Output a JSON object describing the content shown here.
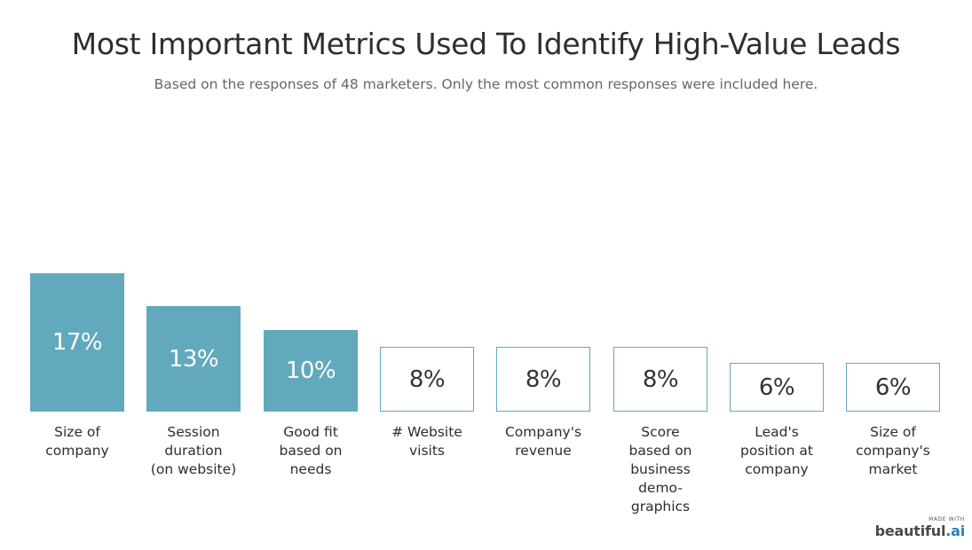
{
  "title": "Most Important Metrics Used To Identify High-Value Leads",
  "subtitle": "Based on the responses of 48 marketers. Only the most common responses were included here.",
  "chart_data": {
    "type": "bar",
    "title": "Most Important Metrics Used To Identify High-Value Leads",
    "subtitle": "Based on the responses of 48 marketers. Only the most common responses were included here.",
    "categories": [
      "Size of\ncompany",
      "Session\nduration\n(on website)",
      "Good fit\nbased on\nneeds",
      "# Website\nvisits",
      "Company's\nrevenue",
      "Score\nbased on\nbusiness\ndemo-\ngraphics",
      "Lead's\nposition at\ncompany",
      "Size of\ncompany's\nmarket"
    ],
    "values": [
      17,
      13,
      10,
      8,
      8,
      8,
      6,
      6
    ],
    "value_labels": [
      "17%",
      "13%",
      "10%",
      "8%",
      "8%",
      "8%",
      "6%",
      "6%"
    ],
    "filled": [
      true,
      true,
      true,
      false,
      false,
      false,
      false,
      false
    ],
    "unit": "%",
    "ylim": [
      0,
      17
    ],
    "grid": false,
    "xlabel": "",
    "ylabel": ""
  },
  "colors": {
    "accent": "#62a9bd",
    "title": "#2e2e2e",
    "subtitle": "#666666",
    "brand_ai": "#2c7fbd"
  },
  "branding": {
    "made_with": "MADE WITH",
    "name": "beautiful",
    "suffix": ".ai"
  }
}
